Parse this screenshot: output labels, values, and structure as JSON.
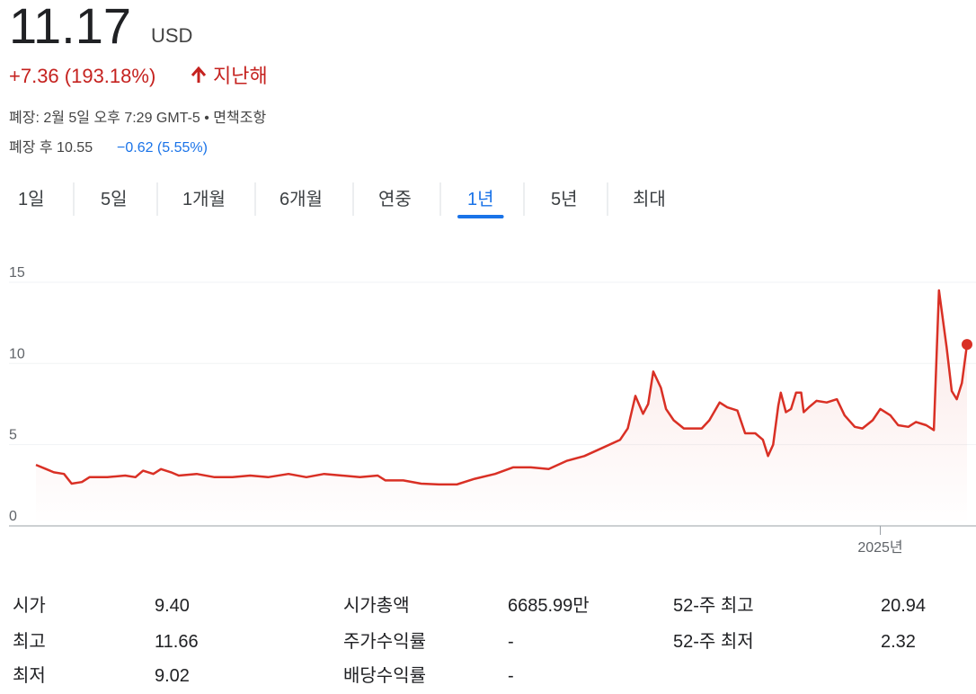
{
  "header": {
    "price": "11.17",
    "currency": "USD",
    "change": "+7.36 (193.18%)",
    "period": "지난해",
    "closed_info": "폐장: 2월 5일 오후 7:29 GMT-5 • 면책조항",
    "after_hours": {
      "label": "폐장 후 10.55",
      "change": "−0.62 (5.55%)"
    }
  },
  "tabs": {
    "items": [
      "1일",
      "5일",
      "1개월",
      "6개월",
      "연중",
      "1년",
      "5년",
      "최대"
    ],
    "selected_index": 5
  },
  "chart_data": {
    "type": "line",
    "color": "#d93025",
    "grid": true,
    "xlim": [
      0,
      365
    ],
    "ylim": [
      0,
      16
    ],
    "yticks": [
      0,
      5,
      10,
      15
    ],
    "xticks": [
      {
        "value": 331,
        "label": "2025년"
      }
    ],
    "series": [
      {
        "x": [
          0,
          4,
          7,
          11,
          14,
          18,
          21,
          28,
          35,
          39,
          42,
          46,
          49,
          53,
          56,
          63,
          70,
          77,
          84,
          91,
          99,
          106,
          113,
          120,
          127,
          134,
          137,
          144,
          151,
          158,
          165,
          172,
          180,
          187,
          194,
          201,
          208,
          215,
          222,
          229,
          232,
          235,
          238,
          240,
          242,
          245,
          247,
          250,
          254,
          257,
          261,
          264,
          268,
          271,
          275,
          278,
          282,
          285,
          287,
          289,
          291,
          292,
          294,
          296,
          298,
          300,
          301,
          303,
          306,
          310,
          314,
          317,
          321,
          324,
          328,
          331,
          335,
          338,
          342,
          345,
          349,
          352,
          354,
          357,
          359,
          361,
          363,
          365
        ],
        "values": [
          3.76,
          3.5,
          3.3,
          3.2,
          2.6,
          2.7,
          3.0,
          3.0,
          3.1,
          3.0,
          3.4,
          3.2,
          3.5,
          3.3,
          3.1,
          3.2,
          3.0,
          3.0,
          3.1,
          3.0,
          3.2,
          3.0,
          3.2,
          3.1,
          3.0,
          3.1,
          2.8,
          2.8,
          2.6,
          2.55,
          2.55,
          2.9,
          3.2,
          3.6,
          3.6,
          3.5,
          4.0,
          4.3,
          4.8,
          5.3,
          6.0,
          8.0,
          6.9,
          7.5,
          9.5,
          8.5,
          7.2,
          6.5,
          6.0,
          6.0,
          6.0,
          6.5,
          7.6,
          7.3,
          7.1,
          5.7,
          5.7,
          5.3,
          4.3,
          5.0,
          7.4,
          8.2,
          7.0,
          7.2,
          8.2,
          8.2,
          7.0,
          7.3,
          7.7,
          7.6,
          7.8,
          6.8,
          6.1,
          6.0,
          6.5,
          7.2,
          6.8,
          6.2,
          6.1,
          6.4,
          6.2,
          5.9,
          14.5,
          11,
          8.3,
          7.8,
          8.8,
          11.17
        ]
      }
    ]
  },
  "stats": [
    [
      [
        "시가",
        "9.40"
      ],
      [
        "시가총액",
        "6685.99만"
      ],
      [
        "52-주 최고",
        "20.94"
      ]
    ],
    [
      [
        "최고",
        "11.66"
      ],
      [
        "주가수익률",
        "-"
      ],
      [
        "52-주 최저",
        "2.32"
      ]
    ],
    [
      [
        "최저",
        "9.02"
      ],
      [
        "배당수익률",
        "-"
      ]
    ]
  ]
}
